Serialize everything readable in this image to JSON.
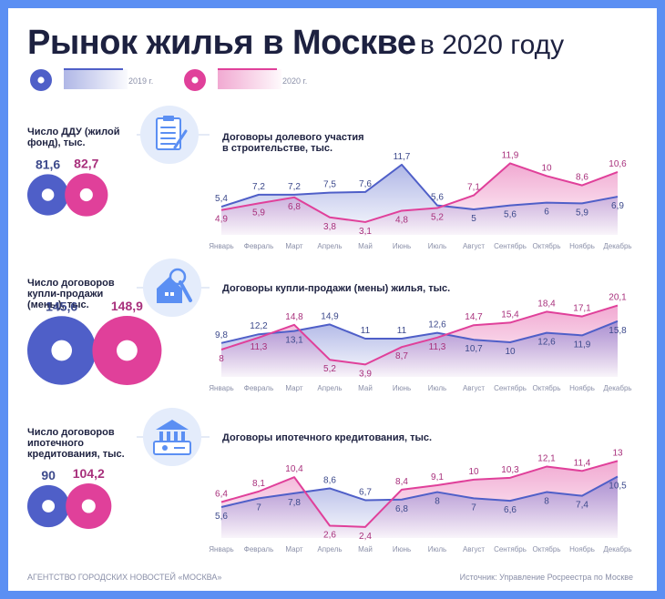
{
  "title": "Рынок жилья в Москве",
  "title_year": "в 2020 году",
  "colors": {
    "y2019": "#4f5fc8",
    "y2020": "#e0409a",
    "label2019": "#3d4a8c",
    "label2020": "#a8307c",
    "frame": "#5b8ff3",
    "dark": "#1d2140",
    "iconbg": "#e4ecfb",
    "icon": "#5b8ff3"
  },
  "legend": [
    {
      "label": "2019 г.",
      "color": "#4f5fc8"
    },
    {
      "label": "2020 г.",
      "color": "#e0409a"
    }
  ],
  "months": [
    "Январь",
    "Февраль",
    "Март",
    "Апрель",
    "Май",
    "Июнь",
    "Июль",
    "Август",
    "Сентябрь",
    "Октябрь",
    "Ноябрь",
    "Декабрь"
  ],
  "sections": [
    {
      "side_label": "Число ДДУ (жилой фонд), тыс.",
      "total_2019": "81,6",
      "total_2020": "82,7",
      "chart_title": "Договоры долевого участия в строительстве, тыс.",
      "icon": "document-pen-icon"
    },
    {
      "side_label": "Число договоров купли-продажи (мены), тыс.",
      "total_2019": "145,6",
      "total_2020": "148,9",
      "chart_title": "Договоры купли-продажи (мены) жилья, тыс.",
      "icon": "house-keys-icon"
    },
    {
      "side_label": "Число договоров ипотечного кредитования, тыс.",
      "total_2019": "90",
      "total_2020": "104,2",
      "chart_title": "Договоры ипотечного кредитования, тыс.",
      "icon": "bank-safe-icon"
    }
  ],
  "chart_data": [
    {
      "type": "area",
      "title": "Договоры долевого участия в строительстве, тыс.",
      "categories": [
        "Январь",
        "Февраль",
        "Март",
        "Апрель",
        "Май",
        "Июнь",
        "Июль",
        "Август",
        "Сентябрь",
        "Октябрь",
        "Ноябрь",
        "Декабрь"
      ],
      "series": [
        {
          "name": "2019 г.",
          "values": [
            5.4,
            7.2,
            7.2,
            7.5,
            7.6,
            11.7,
            5.6,
            5,
            5.6,
            6,
            5.9,
            6.9
          ],
          "labels": [
            "5,4",
            "7,2",
            "7,2",
            "7,5",
            "7,6",
            "11,7",
            "5,6",
            "5",
            "5,6",
            "6",
            "5,9",
            "6,9"
          ]
        },
        {
          "name": "2020 г.",
          "values": [
            4.9,
            5.9,
            6.8,
            3.8,
            3.1,
            4.8,
            5.2,
            7.1,
            11.9,
            10,
            8.6,
            10.6
          ],
          "labels": [
            "4,9",
            "5,9",
            "6,8",
            "3,8",
            "3,1",
            "4,8",
            "5,2",
            "7,1",
            "11,9",
            "10",
            "8,6",
            "10,6"
          ]
        }
      ]
    },
    {
      "type": "area",
      "title": "Договоры купли-продажи (мены) жилья, тыс.",
      "categories": [
        "Январь",
        "Февраль",
        "Март",
        "Апрель",
        "Май",
        "Июнь",
        "Июль",
        "Август",
        "Сентябрь",
        "Октябрь",
        "Ноябрь",
        "Декабрь"
      ],
      "series": [
        {
          "name": "2019 г.",
          "values": [
            9.8,
            12.2,
            13.1,
            14.9,
            11,
            11,
            12.6,
            10.7,
            10,
            12.6,
            11.9,
            15.8
          ],
          "labels": [
            "9,8",
            "12,2",
            "13,1",
            "14,9",
            "11",
            "11",
            "12,6",
            "10,7",
            "10",
            "12,6",
            "11,9",
            "15,8"
          ]
        },
        {
          "name": "2020 г.",
          "values": [
            8,
            11.3,
            14.8,
            5.2,
            3.9,
            8.7,
            11.3,
            14.7,
            15.4,
            18.4,
            17.1,
            20.1
          ],
          "labels": [
            "8",
            "11,3",
            "14,8",
            "5,2",
            "3,9",
            "8,7",
            "11,3",
            "14,7",
            "15,4",
            "18,4",
            "17,1",
            "20,1"
          ]
        }
      ]
    },
    {
      "type": "area",
      "title": "Договоры ипотечного кредитования, тыс.",
      "categories": [
        "Январь",
        "Февраль",
        "Март",
        "Апрель",
        "Май",
        "Июнь",
        "Июль",
        "Август",
        "Сентябрь",
        "Октябрь",
        "Ноябрь",
        "Декабрь"
      ],
      "series": [
        {
          "name": "2019 г.",
          "values": [
            5.6,
            7,
            7.8,
            8.6,
            6.7,
            6.8,
            8,
            7,
            6.6,
            8,
            7.4,
            10.5
          ],
          "labels": [
            "5,6",
            "7",
            "7,8",
            "8,6",
            "6,7",
            "6,8",
            "8",
            "7",
            "6,6",
            "8",
            "7,4",
            "10,5"
          ]
        },
        {
          "name": "2020 г.",
          "values": [
            6.4,
            8.1,
            10.4,
            2.6,
            2.4,
            8.4,
            9.1,
            10,
            10.3,
            12.1,
            11.4,
            13
          ],
          "labels": [
            "6,4",
            "8,1",
            "10,4",
            "2,6",
            "2,4",
            "8,4",
            "9,1",
            "10",
            "10,3",
            "12,1",
            "11,4",
            "13"
          ]
        }
      ]
    }
  ],
  "footer_left": "АГЕНТСТВО ГОРОДСКИХ НОВОСТЕЙ «МОСКВА»",
  "footer_right": "Источник: Управление Росреестра по Москве"
}
